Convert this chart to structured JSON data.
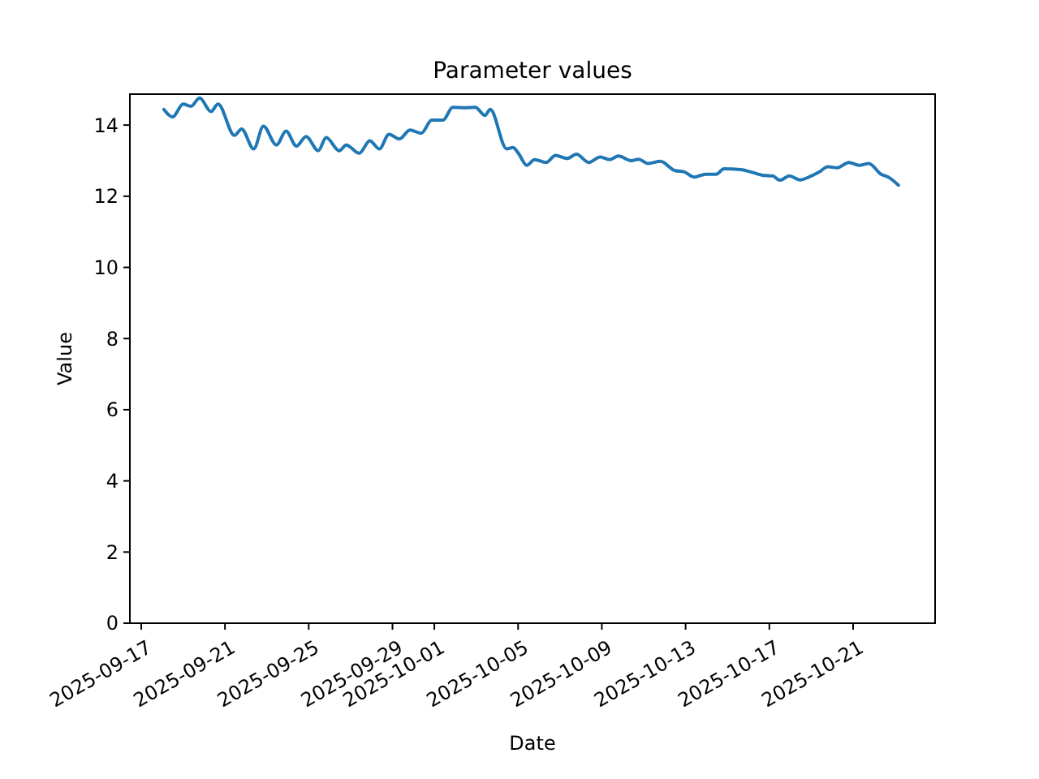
{
  "chart_data": {
    "type": "line",
    "title": "Parameter values",
    "xlabel": "Date",
    "ylabel": "Value",
    "x": [
      "2025-09-18T02:00",
      "2025-09-18T12:00",
      "2025-09-19T00:00",
      "2025-09-19T09:00",
      "2025-09-19T19:00",
      "2025-09-20T08:00",
      "2025-09-20T16:00",
      "2025-09-21T11:00",
      "2025-09-21T19:00",
      "2025-09-22T09:00",
      "2025-09-22T20:00",
      "2025-09-23T11:00",
      "2025-09-23T22:00",
      "2025-09-24T10:00",
      "2025-09-24T21:00",
      "2025-09-25T11:00",
      "2025-09-25T20:00",
      "2025-09-26T11:00",
      "2025-09-26T19:00",
      "2025-09-27T10:00",
      "2025-09-27T22:00",
      "2025-09-28T09:00",
      "2025-09-28T20:00",
      "2025-09-29T08:00",
      "2025-09-29T20:00",
      "2025-09-30T09:00",
      "2025-09-30T21:00",
      "2025-10-01T10:00",
      "2025-10-01T21:00",
      "2025-10-02T11:00",
      "2025-10-02T23:00",
      "2025-10-03T10:00",
      "2025-10-03T16:00",
      "2025-10-04T11:00",
      "2025-10-04T18:00",
      "2025-10-05T00:00",
      "2025-10-05T10:00",
      "2025-10-05T19:00",
      "2025-10-06T08:00",
      "2025-10-06T19:00",
      "2025-10-07T08:00",
      "2025-10-07T19:00",
      "2025-10-08T09:00",
      "2025-10-08T22:00",
      "2025-10-09T09:00",
      "2025-10-09T19:00",
      "2025-10-10T10:00",
      "2025-10-10T18:00",
      "2025-10-11T05:00",
      "2025-10-11T19:00",
      "2025-10-12T12:00",
      "2025-10-12T22:00",
      "2025-10-13T10:00",
      "2025-10-13T23:00",
      "2025-10-14T11:00",
      "2025-10-14T20:00",
      "2025-10-15T15:00",
      "2025-10-16T02:00",
      "2025-10-16T16:00",
      "2025-10-17T04:00",
      "2025-10-17T12:00",
      "2025-10-17T23:00",
      "2025-10-18T11:00",
      "2025-10-19T00:00",
      "2025-10-19T09:00",
      "2025-10-19T19:00",
      "2025-10-20T06:00",
      "2025-10-20T19:00",
      "2025-10-21T07:00",
      "2025-10-21T18:00",
      "2025-10-22T08:00",
      "2025-10-22T17:00",
      "2025-10-23T04:00"
    ],
    "series": [
      {
        "color": "#1f77b4",
        "values": [
          14.44,
          14.23,
          14.59,
          14.53,
          14.76,
          14.38,
          14.59,
          13.71,
          13.89,
          13.33,
          13.97,
          13.44,
          13.83,
          13.41,
          13.68,
          13.28,
          13.65,
          13.28,
          13.44,
          13.21,
          13.56,
          13.33,
          13.74,
          13.61,
          13.86,
          13.77,
          14.14,
          14.14,
          14.5,
          14.49,
          14.5,
          14.27,
          14.44,
          13.33,
          13.37,
          13.22,
          12.87,
          13.03,
          12.95,
          13.15,
          13.06,
          13.18,
          12.95,
          13.1,
          13.03,
          13.13,
          13.0,
          13.04,
          12.92,
          12.98,
          12.72,
          12.69,
          12.54,
          12.62,
          12.62,
          12.77,
          12.75,
          12.69,
          12.59,
          12.57,
          12.45,
          12.57,
          12.46,
          12.57,
          12.68,
          12.83,
          12.8,
          12.95,
          12.87,
          12.92,
          12.62,
          12.53,
          12.31
        ]
      }
    ],
    "xlim": [
      "2025-09-16T11:00",
      "2025-10-24T22:00"
    ],
    "xticks": [
      "2025-09-17",
      "2025-09-21",
      "2025-09-25",
      "2025-09-29",
      "2025-10-01",
      "2025-10-05",
      "2025-10-09",
      "2025-10-13",
      "2025-10-17",
      "2025-10-21"
    ],
    "ylim": [
      0,
      14.87
    ],
    "yticks": [
      0,
      2,
      4,
      6,
      8,
      10,
      12,
      14
    ],
    "grid": false,
    "marker": "none",
    "line_style": "solid"
  }
}
